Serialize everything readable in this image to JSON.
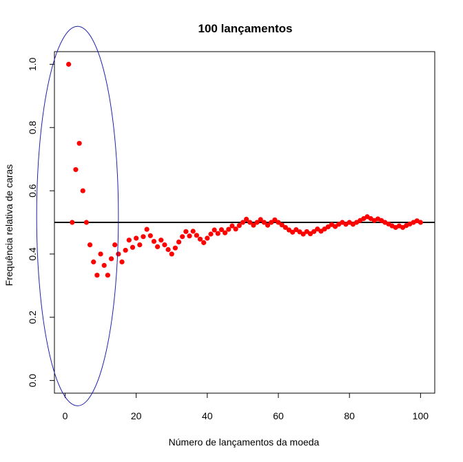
{
  "chart_data": {
    "type": "scatter",
    "title": "100 lançamentos",
    "xlabel": "Número de lançamentos da moeda",
    "ylabel": "Frequência relativa de caras",
    "xlim": [
      -3,
      104
    ],
    "ylim": [
      -0.04,
      1.04
    ],
    "xticks": [
      "0",
      "20",
      "40",
      "60",
      "80",
      "100"
    ],
    "yticks": [
      "0.0",
      "0.2",
      "0.4",
      "0.6",
      "0.8",
      "1.0"
    ],
    "reference_line": {
      "y": 0.5,
      "color": "#000000"
    },
    "highlight_ellipse": {
      "center": [
        3.5,
        0.52
      ],
      "rx": 11.5,
      "ry": 0.6,
      "color": "#1f1fae"
    },
    "point_color": "#ff0000",
    "x": [
      1,
      2,
      3,
      4,
      5,
      6,
      7,
      8,
      9,
      10,
      11,
      12,
      13,
      14,
      15,
      16,
      17,
      18,
      19,
      20,
      21,
      22,
      23,
      24,
      25,
      26,
      27,
      28,
      29,
      30,
      31,
      32,
      33,
      34,
      35,
      36,
      37,
      38,
      39,
      40,
      41,
      42,
      43,
      44,
      45,
      46,
      47,
      48,
      49,
      50,
      51,
      52,
      53,
      54,
      55,
      56,
      57,
      58,
      59,
      60,
      61,
      62,
      63,
      64,
      65,
      66,
      67,
      68,
      69,
      70,
      71,
      72,
      73,
      74,
      75,
      76,
      77,
      78,
      79,
      80,
      81,
      82,
      83,
      84,
      85,
      86,
      87,
      88,
      89,
      90,
      91,
      92,
      93,
      94,
      95,
      96,
      97,
      98,
      99,
      100
    ],
    "y": [
      1.0,
      0.5,
      0.667,
      0.75,
      0.6,
      0.5,
      0.429,
      0.375,
      0.333,
      0.4,
      0.364,
      0.333,
      0.385,
      0.429,
      0.4,
      0.375,
      0.412,
      0.444,
      0.421,
      0.45,
      0.429,
      0.455,
      0.478,
      0.458,
      0.44,
      0.423,
      0.444,
      0.429,
      0.414,
      0.4,
      0.419,
      0.438,
      0.455,
      0.471,
      0.457,
      0.472,
      0.459,
      0.447,
      0.436,
      0.45,
      0.463,
      0.476,
      0.465,
      0.477,
      0.467,
      0.478,
      0.489,
      0.479,
      0.49,
      0.5,
      0.51,
      0.5,
      0.491,
      0.5,
      0.509,
      0.5,
      0.491,
      0.5,
      0.508,
      0.5,
      0.492,
      0.484,
      0.476,
      0.469,
      0.477,
      0.47,
      0.463,
      0.471,
      0.464,
      0.471,
      0.479,
      0.472,
      0.479,
      0.486,
      0.493,
      0.487,
      0.494,
      0.5,
      0.494,
      0.5,
      0.494,
      0.5,
      0.506,
      0.512,
      0.518,
      0.512,
      0.506,
      0.511,
      0.506,
      0.5,
      0.495,
      0.489,
      0.484,
      0.489,
      0.484,
      0.49,
      0.495,
      0.5,
      0.505,
      0.5
    ]
  }
}
